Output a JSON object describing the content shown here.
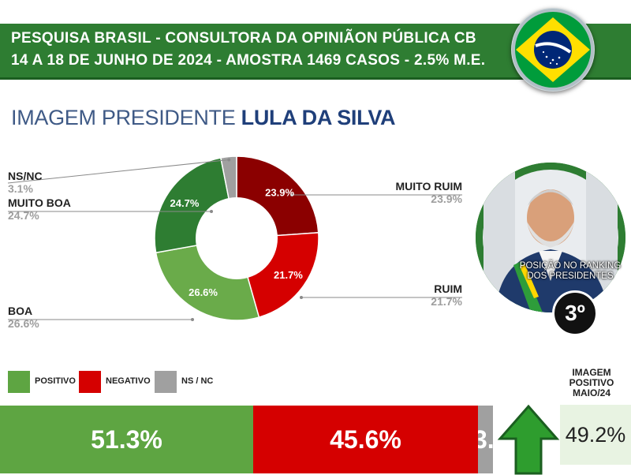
{
  "header": {
    "line1": "PESQUISA BRASIL - CONSULTORA DA OPINIÃON PÚBLICA CB",
    "line2": "14 A 18 DE JUNHO DE 2024 - AMOSTRA 1469 CASOS - 2.5% M.E."
  },
  "flag": {
    "icon": "brazil-flag-icon",
    "colors": [
      "#009c3b",
      "#ffdf00",
      "#002776"
    ]
  },
  "title": {
    "prefix": "IMAGEM PRESIDENTE ",
    "name": "LULA DA SILVA"
  },
  "portrait": {
    "icon": "president-portrait",
    "caption": "POSIÇÃO NO RANKING DOS PRESIDENTES",
    "rank": "3º"
  },
  "colors": {
    "muito_ruim": "#8b0000",
    "ruim": "#d50000",
    "boa": "#6aab4a",
    "muito_boa": "#2e7d32",
    "nsnc": "#a0a0a0",
    "positivo": "#5ea542",
    "negativo": "#d50000"
  },
  "chart_data": {
    "type": "pie",
    "slices": [
      {
        "label": "MUITO RUIM",
        "value": 23.9,
        "text": "23.9%",
        "color": "#8b0000"
      },
      {
        "label": "RUIM",
        "value": 21.7,
        "text": "21.7%",
        "color": "#d50000"
      },
      {
        "label": "BOA",
        "value": 26.6,
        "text": "26.6%",
        "color": "#6aab4a"
      },
      {
        "label": "MUITO BOA",
        "value": 24.7,
        "text": "24.7%",
        "color": "#2e7d32"
      },
      {
        "label": "NS/NC",
        "value": 3.1,
        "text": "3.1%",
        "color": "#a0a0a0"
      }
    ],
    "legend": [
      "POSITIVO",
      "NEGATIVO",
      "NS / NC"
    ],
    "summary": [
      {
        "label": "POSITIVO",
        "value": 51.3,
        "text": "51.3%",
        "color": "#5ea542"
      },
      {
        "label": "NEGATIVO",
        "value": 45.6,
        "text": "45.6%",
        "color": "#d50000"
      },
      {
        "label": "NS / NC",
        "value": 3.1,
        "text": "3.1%",
        "color": "#a0a0a0"
      }
    ],
    "previous": {
      "label": "IMAGEM POSITIVO MAIO/24",
      "value": 49.2,
      "text": "49.2%"
    }
  }
}
